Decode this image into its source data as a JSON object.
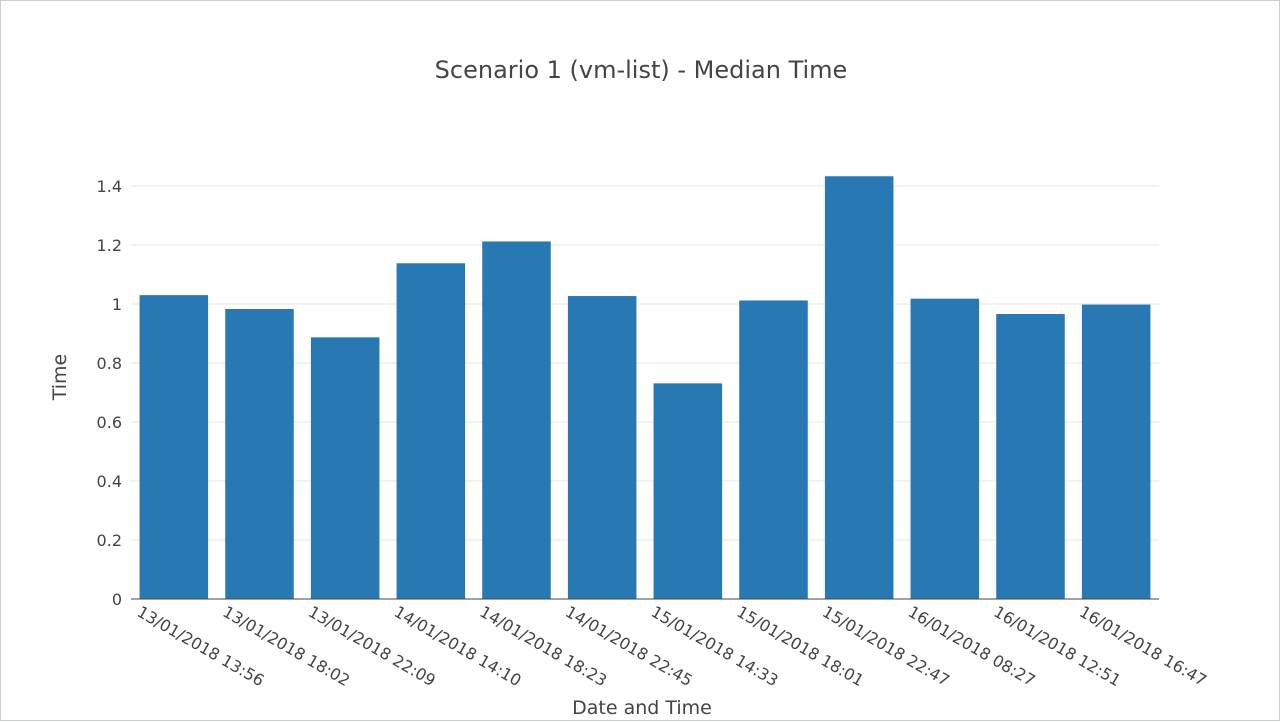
{
  "chart_data": {
    "type": "bar",
    "title": "Scenario 1 (vm-list) - Median Time",
    "xlabel": "Date and Time",
    "ylabel": "Time",
    "ylim": [
      0,
      1.4
    ],
    "yticks": [
      0,
      0.2,
      0.4,
      0.6,
      0.8,
      1,
      1.2,
      1.4
    ],
    "grid": true,
    "categories": [
      "13/01/2018 13:56",
      "13/01/2018 18:02",
      "13/01/2018 22:09",
      "14/01/2018 14:10",
      "14/01/2018 18:23",
      "14/01/2018 22:45",
      "15/01/2018 14:33",
      "15/01/2018 18:01",
      "15/01/2018 22:47",
      "16/01/2018 08:27",
      "16/01/2018 12:51",
      "16/01/2018 16:47"
    ],
    "values": [
      1.03,
      0.983,
      0.887,
      1.138,
      1.212,
      1.027,
      0.731,
      1.012,
      1.433,
      1.018,
      0.966,
      0.998
    ],
    "color": "#2878b4"
  }
}
